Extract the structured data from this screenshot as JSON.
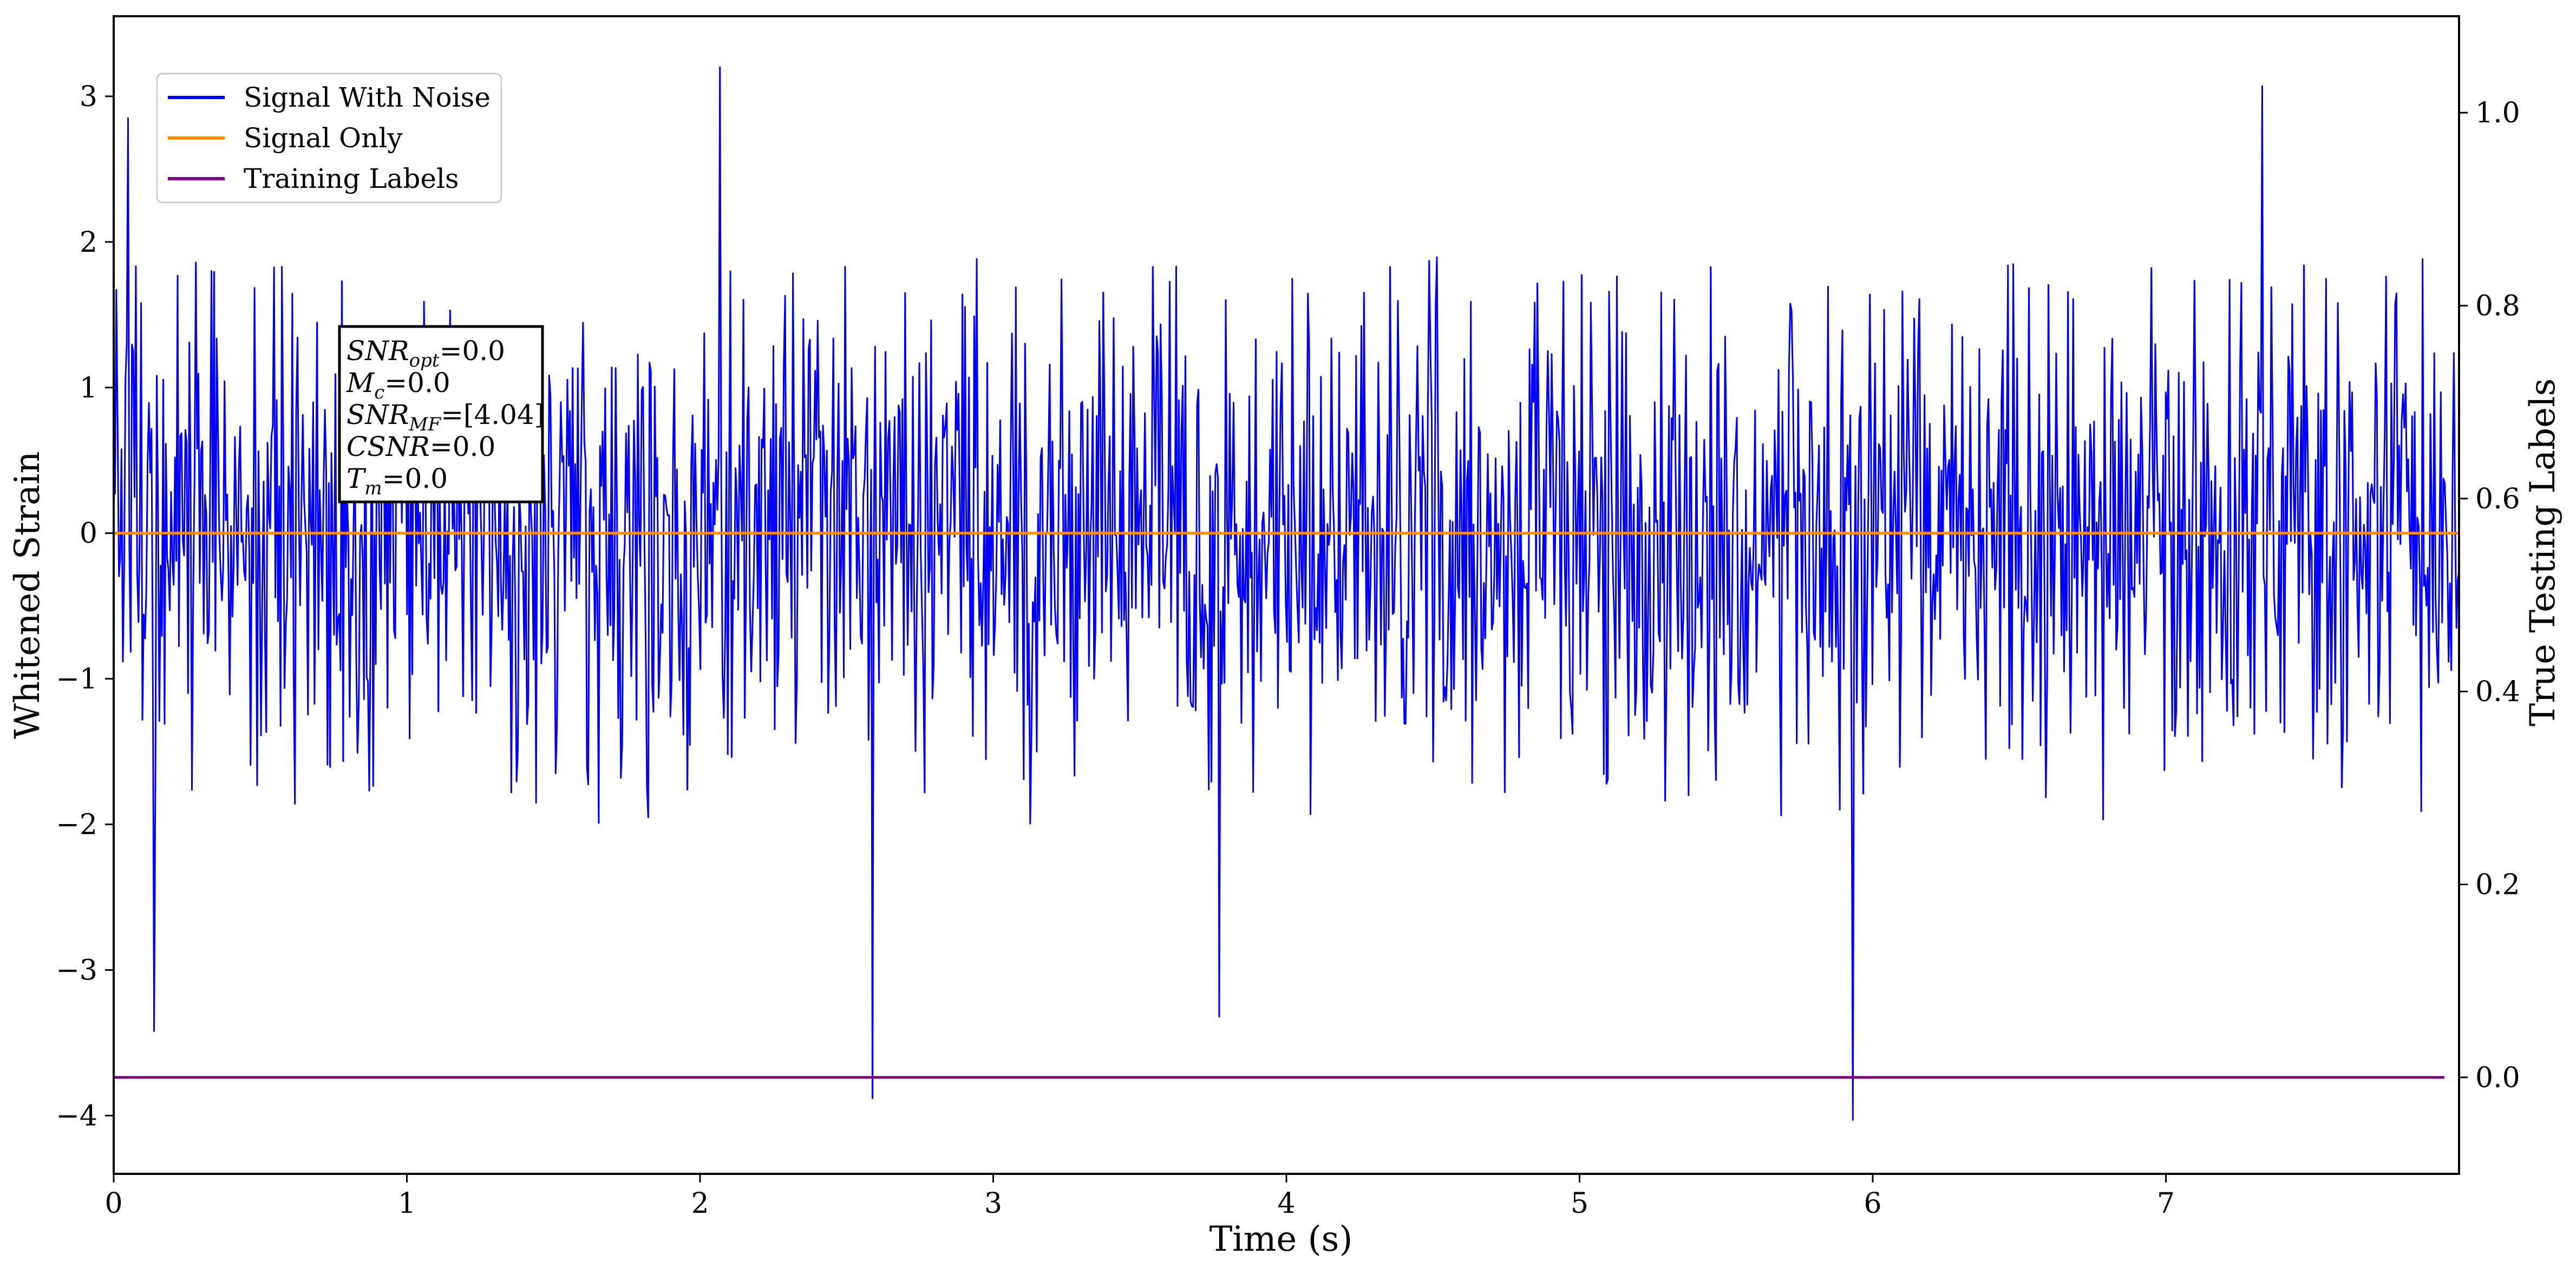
{
  "chart_data": {
    "type": "line",
    "title": "",
    "xlabel": "Time (s)",
    "ylabel": "Whitened Strain",
    "y2label": "True Testing Labels",
    "xlim": [
      0,
      8.0
    ],
    "ylim": [
      -4.4,
      3.55
    ],
    "y2lim": [
      -0.1,
      1.1
    ],
    "x_ticks": [
      0,
      1,
      2,
      3,
      4,
      5,
      6,
      7
    ],
    "x_tick_labels": [
      "0",
      "1",
      "2",
      "3",
      "4",
      "5",
      "6",
      "7"
    ],
    "y_ticks": [
      3,
      2,
      1,
      0,
      -1,
      -2,
      -3,
      -4
    ],
    "y_tick_labels": [
      "3",
      "2",
      "1",
      "0",
      "−1",
      "−2",
      "−3",
      "−4"
    ],
    "y2_ticks": [
      1.0,
      0.8,
      0.6,
      0.4,
      0.2,
      0.0
    ],
    "y2_tick_labels": [
      "1.0",
      "0.8",
      "0.6",
      "0.4",
      "0.2",
      "0.0"
    ],
    "grid": false,
    "legend_position": "top-left",
    "series": [
      {
        "name": "Signal With Noise",
        "color": "#0000ff",
        "axis": "left",
        "x_range": [
          0,
          8.0
        ],
        "sample_count": 1800,
        "noise_envelope": [
          -2.0,
          1.9
        ],
        "notable_peaks": [
          {
            "x": 0.05,
            "y": 2.85
          },
          {
            "x": 0.14,
            "y": -3.42
          },
          {
            "x": 2.07,
            "y": 3.2
          },
          {
            "x": 2.59,
            "y": -3.88
          },
          {
            "x": 3.77,
            "y": -3.32
          },
          {
            "x": 5.93,
            "y": -4.03
          },
          {
            "x": 7.33,
            "y": 3.07
          }
        ]
      },
      {
        "name": "Signal Only",
        "color": "#ff8c00",
        "axis": "left",
        "x": [
          0,
          8.0
        ],
        "y": [
          0,
          0
        ]
      },
      {
        "name": "Training Labels",
        "color": "#800080",
        "axis": "right",
        "x": [
          0,
          7.95
        ],
        "y": [
          0.0,
          0.0
        ]
      }
    ],
    "annotation": {
      "lines": [
        {
          "base": "SNR",
          "sub": "opt",
          "value": "=0.0"
        },
        {
          "base": "M",
          "sub": "c",
          "value": "=0.0"
        },
        {
          "base": "SNR",
          "sub": "MF",
          "value": "=[4.04]"
        },
        {
          "base": "CSNR",
          "sub": "",
          "value": "=0.0"
        },
        {
          "base": "T",
          "sub": "m",
          "value": "=0.0"
        }
      ]
    }
  }
}
